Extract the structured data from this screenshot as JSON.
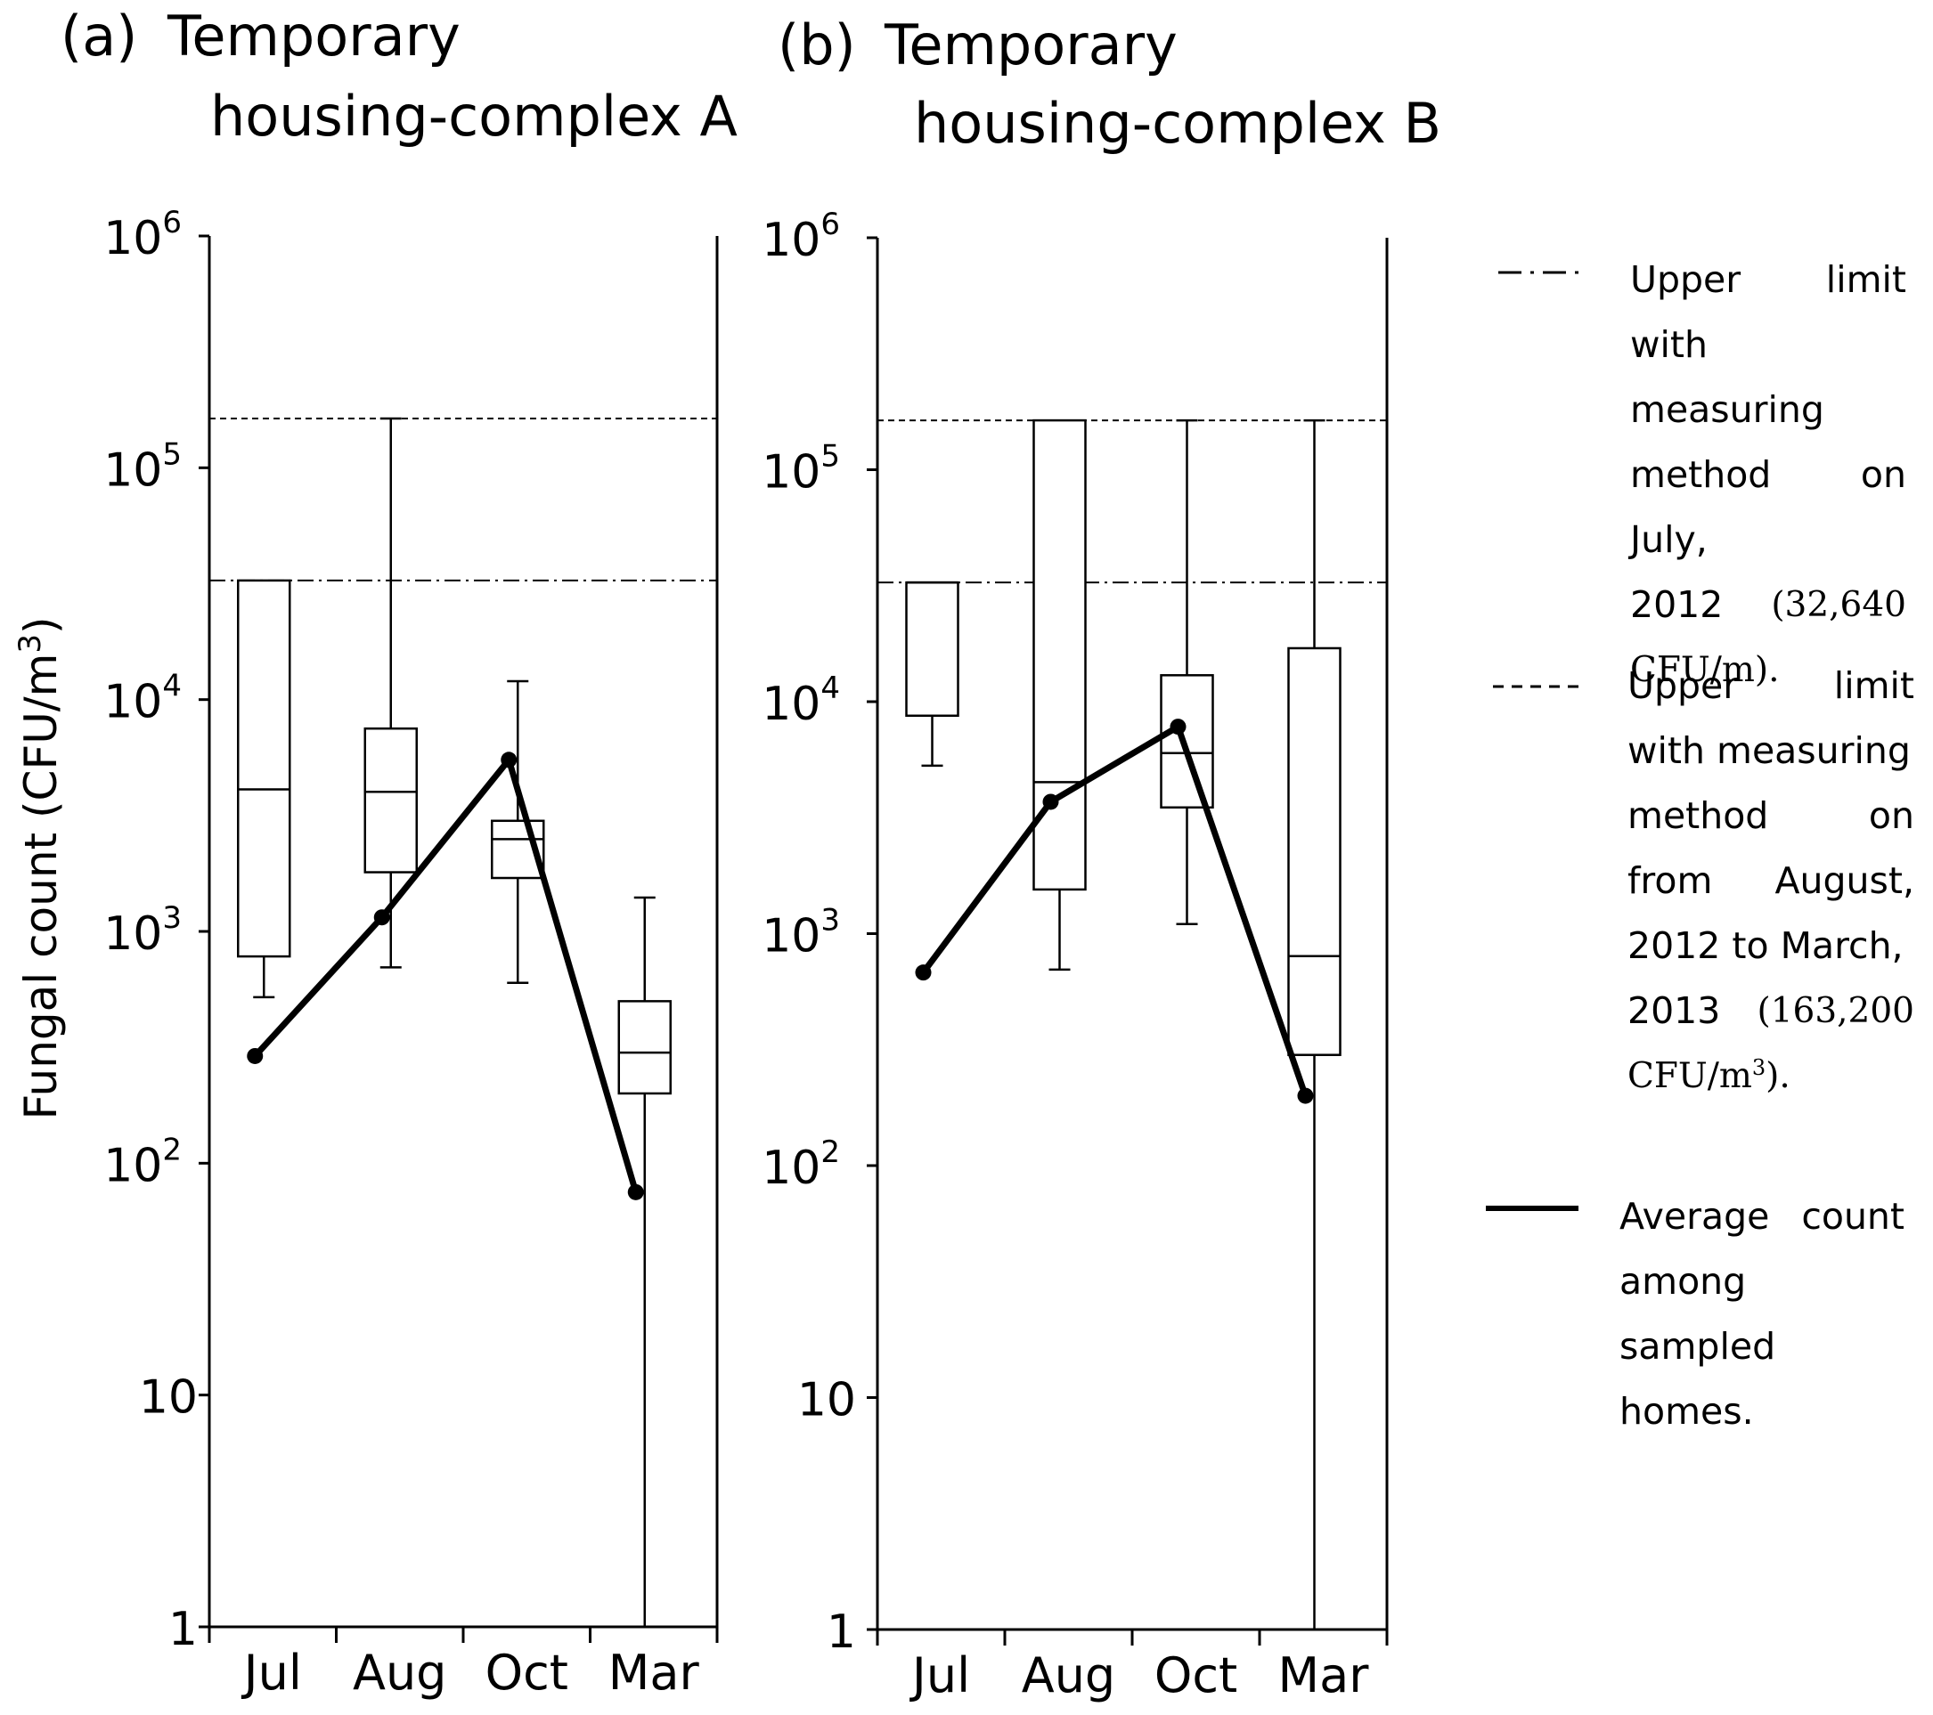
{
  "chart_data": [
    {
      "type": "box",
      "panel_label": "(a)",
      "title_line1": "Temporary",
      "title_line2": "housing-complex A",
      "categories": [
        "Jul",
        "Aug",
        "Oct",
        "Mar"
      ],
      "ylabel": "Fungal count (CFU/m3)",
      "yscale": "log",
      "ylim": [
        1,
        1000000
      ],
      "yticks": [
        {
          "base": "10",
          "exp": "6",
          "value": 1000000
        },
        {
          "base": "10",
          "exp": "5",
          "value": 100000
        },
        {
          "base": "10",
          "exp": "4",
          "value": 10000
        },
        {
          "base": "10",
          "exp": "3",
          "value": 1000
        },
        {
          "base": "10",
          "exp": "2",
          "value": 100
        },
        {
          "base": "10",
          "exp": "",
          "value": 10
        },
        {
          "base": "1",
          "exp": "",
          "value": 1
        }
      ],
      "boxes": [
        {
          "category": "Jul",
          "whisker_low": 520,
          "q1": 780,
          "median": 4100,
          "q3": 32640,
          "whisker_high": 32640
        },
        {
          "category": "Aug",
          "whisker_low": 700,
          "q1": 1800,
          "median": 4000,
          "q3": 7500,
          "whisker_high": 163200
        },
        {
          "category": "Oct",
          "whisker_low": 600,
          "q1": 1700,
          "median": 2500,
          "q3": 3000,
          "whisker_high": 12000
        },
        {
          "category": "Mar",
          "whisker_low": 1,
          "q1": 200,
          "median": 300,
          "q3": 500,
          "whisker_high": 1400
        }
      ],
      "average": [
        290,
        1150,
        5500,
        75
      ],
      "reference_lines": {
        "dashdot": 32640,
        "dashed": 163200
      }
    },
    {
      "type": "box",
      "panel_label": "(b)",
      "title_line1": "Temporary",
      "title_line2": "housing-complex B",
      "categories": [
        "Jul",
        "Aug",
        "Oct",
        "Mar"
      ],
      "ylabel": "",
      "yscale": "log",
      "ylim": [
        1,
        1000000
      ],
      "yticks": [
        {
          "base": "10",
          "exp": "6",
          "value": 1000000
        },
        {
          "base": "10",
          "exp": "5",
          "value": 100000
        },
        {
          "base": "10",
          "exp": "4",
          "value": 10000
        },
        {
          "base": "10",
          "exp": "3",
          "value": 1000
        },
        {
          "base": "10",
          "exp": "2",
          "value": 100
        },
        {
          "base": "10",
          "exp": "",
          "value": 10
        },
        {
          "base": "1",
          "exp": "",
          "value": 1
        }
      ],
      "boxes": [
        {
          "category": "Jul",
          "whisker_low": 5300,
          "q1": 8700,
          "median": 32640,
          "q3": 32640,
          "whisker_high": 32640
        },
        {
          "category": "Aug",
          "whisker_low": 700,
          "q1": 1550,
          "median": 4500,
          "q3": 163200,
          "whisker_high": 163200
        },
        {
          "category": "Oct",
          "whisker_low": 1100,
          "q1": 3500,
          "median": 6000,
          "q3": 13000,
          "whisker_high": 163200
        },
        {
          "category": "Mar",
          "whisker_low": 1,
          "q1": 300,
          "median": 800,
          "q3": 17000,
          "whisker_high": 163200
        }
      ],
      "average": [
        680,
        3700,
        7800,
        200
      ],
      "reference_lines": {
        "dashdot": 32640,
        "dashed": 163200
      }
    }
  ],
  "axis_label": {
    "main": "Fungal count (CFU/m",
    "sup": "3",
    "close": ")"
  },
  "legend": {
    "dashdot": {
      "line1_left": "Upper",
      "line1_right": "limit",
      "line2": "with measuring",
      "line3": "method on July,",
      "line4_left": "2012",
      "line4_right": "(32,640",
      "line5": "CFU/m)."
    },
    "dashed": {
      "line1_left": "Upper",
      "line1_right": "limit",
      "line2": "with measuring",
      "line3_left": "method",
      "line3_right": "on",
      "line4_left": "from",
      "line4_right": "August,",
      "line5": "2012 to March,",
      "line6_left": "2013",
      "line6_right": "(163,200",
      "line7_main": "CFU/m",
      "line7_sup": "3",
      "line7_end": ")."
    },
    "average": {
      "line1_left": "Average",
      "line1_right": "count",
      "line2": "among sampled",
      "line3": "homes."
    }
  }
}
